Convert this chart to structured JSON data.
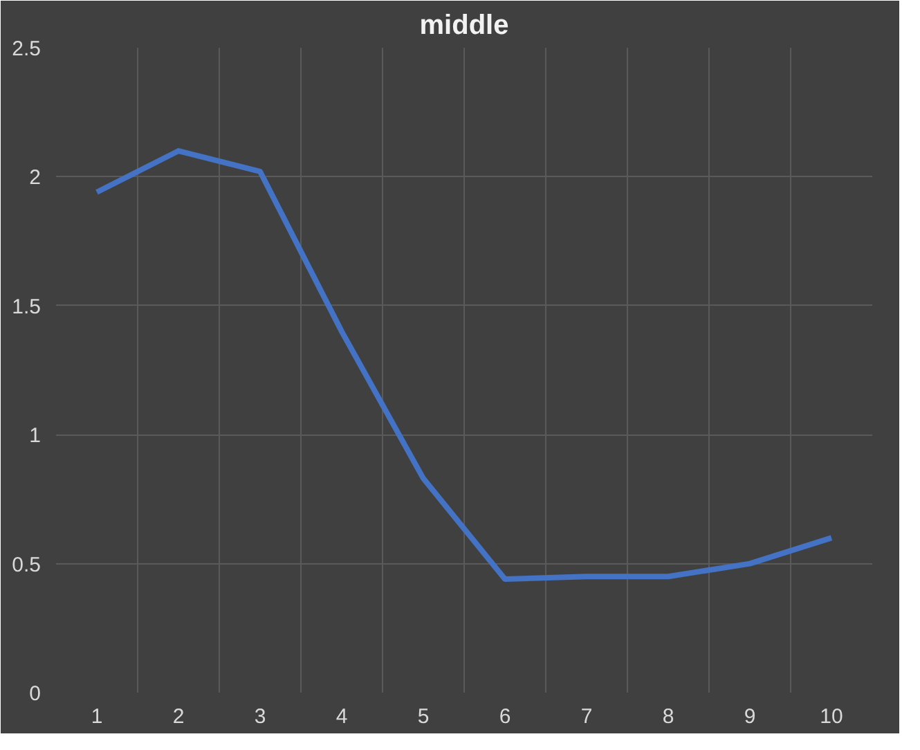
{
  "chart_data": {
    "type": "line",
    "title": "middle",
    "categories": [
      "1",
      "2",
      "3",
      "4",
      "5",
      "6",
      "7",
      "8",
      "9",
      "10"
    ],
    "series": [
      {
        "color": "#4472c4",
        "values": [
          1.94,
          2.1,
          2.02,
          1.4,
          0.83,
          0.44,
          0.45,
          0.45,
          0.5,
          0.6
        ]
      }
    ],
    "ylim": [
      0,
      2.5
    ],
    "yticks": [
      0,
      0.5,
      1,
      1.5,
      2,
      2.5
    ],
    "grid": true,
    "marker": "none",
    "line_style": "solid"
  }
}
